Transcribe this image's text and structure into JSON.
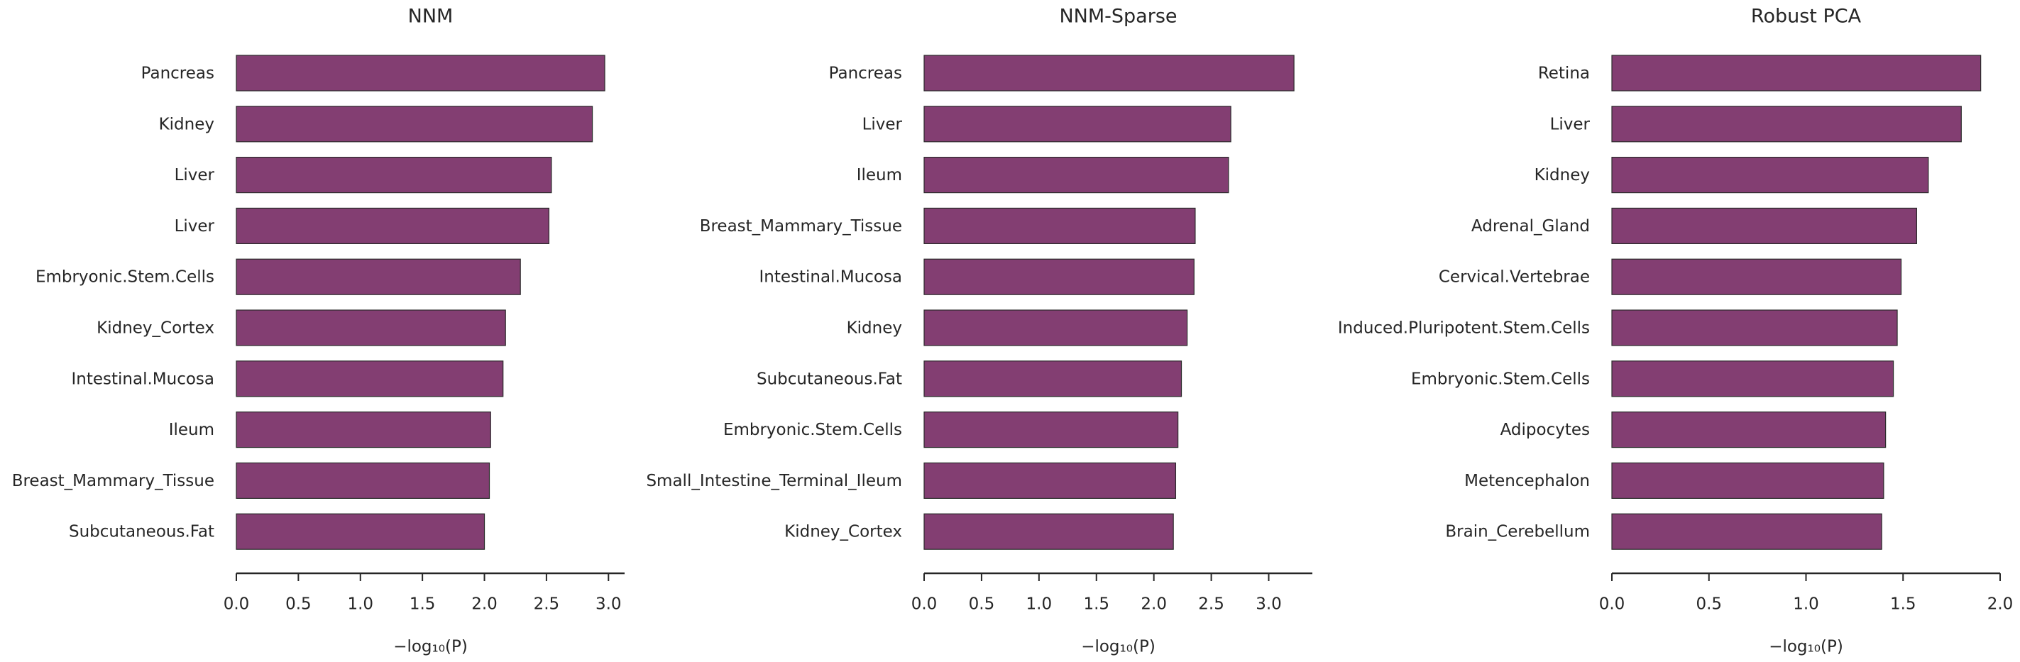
{
  "chart_data": [
    {
      "type": "bar",
      "orientation": "horizontal",
      "title": "NNM",
      "xlabel": "−log₁₀(P)",
      "xlim": [
        0,
        3.13
      ],
      "xticks": [
        "0.0",
        "0.5",
        "1.0",
        "1.5",
        "2.0",
        "2.5",
        "3.0"
      ],
      "categories": [
        "Pancreas",
        "Kidney",
        "Liver",
        "Liver",
        "Embryonic.Stem.Cells",
        "Kidney_Cortex",
        "Intestinal.Mucosa",
        "Ileum",
        "Breast_Mammary_Tissue",
        "Subcutaneous.Fat"
      ],
      "values": [
        2.97,
        2.87,
        2.54,
        2.52,
        2.29,
        2.17,
        2.15,
        2.05,
        2.04,
        2.0
      ],
      "color": "#833e72",
      "grid": false
    },
    {
      "type": "bar",
      "orientation": "horizontal",
      "title": "NNM-Sparse",
      "xlabel": "−log₁₀(P)",
      "xlim": [
        0,
        3.38
      ],
      "xticks": [
        "0.0",
        "0.5",
        "1.0",
        "1.5",
        "2.0",
        "2.5",
        "3.0"
      ],
      "categories": [
        "Pancreas",
        "Liver",
        "Ileum",
        "Breast_Mammary_Tissue",
        "Intestinal.Mucosa",
        "Kidney",
        "Subcutaneous.Fat",
        "Embryonic.Stem.Cells",
        "Small_Intestine_Terminal_Ileum",
        "Kidney_Cortex"
      ],
      "values": [
        3.22,
        2.67,
        2.65,
        2.36,
        2.35,
        2.29,
        2.24,
        2.21,
        2.19,
        2.17
      ],
      "color": "#833e72",
      "grid": false
    },
    {
      "type": "bar",
      "orientation": "horizontal",
      "title": "Robust PCA",
      "xlabel": "−log₁₀(P)",
      "xlim": [
        0,
        2.0
      ],
      "xticks": [
        "0.0",
        "0.5",
        "1.0",
        "1.5",
        "2.0"
      ],
      "categories": [
        "Retina",
        "Liver",
        "Kidney",
        "Adrenal_Gland",
        "Cervical.Vertebrae",
        "Induced.Pluripotent.Stem.Cells",
        "Embryonic.Stem.Cells",
        "Adipocytes",
        "Metencephalon",
        "Brain_Cerebellum"
      ],
      "values": [
        1.9,
        1.8,
        1.63,
        1.57,
        1.49,
        1.47,
        1.45,
        1.41,
        1.4,
        1.39
      ],
      "color": "#833e72",
      "grid": false
    }
  ]
}
